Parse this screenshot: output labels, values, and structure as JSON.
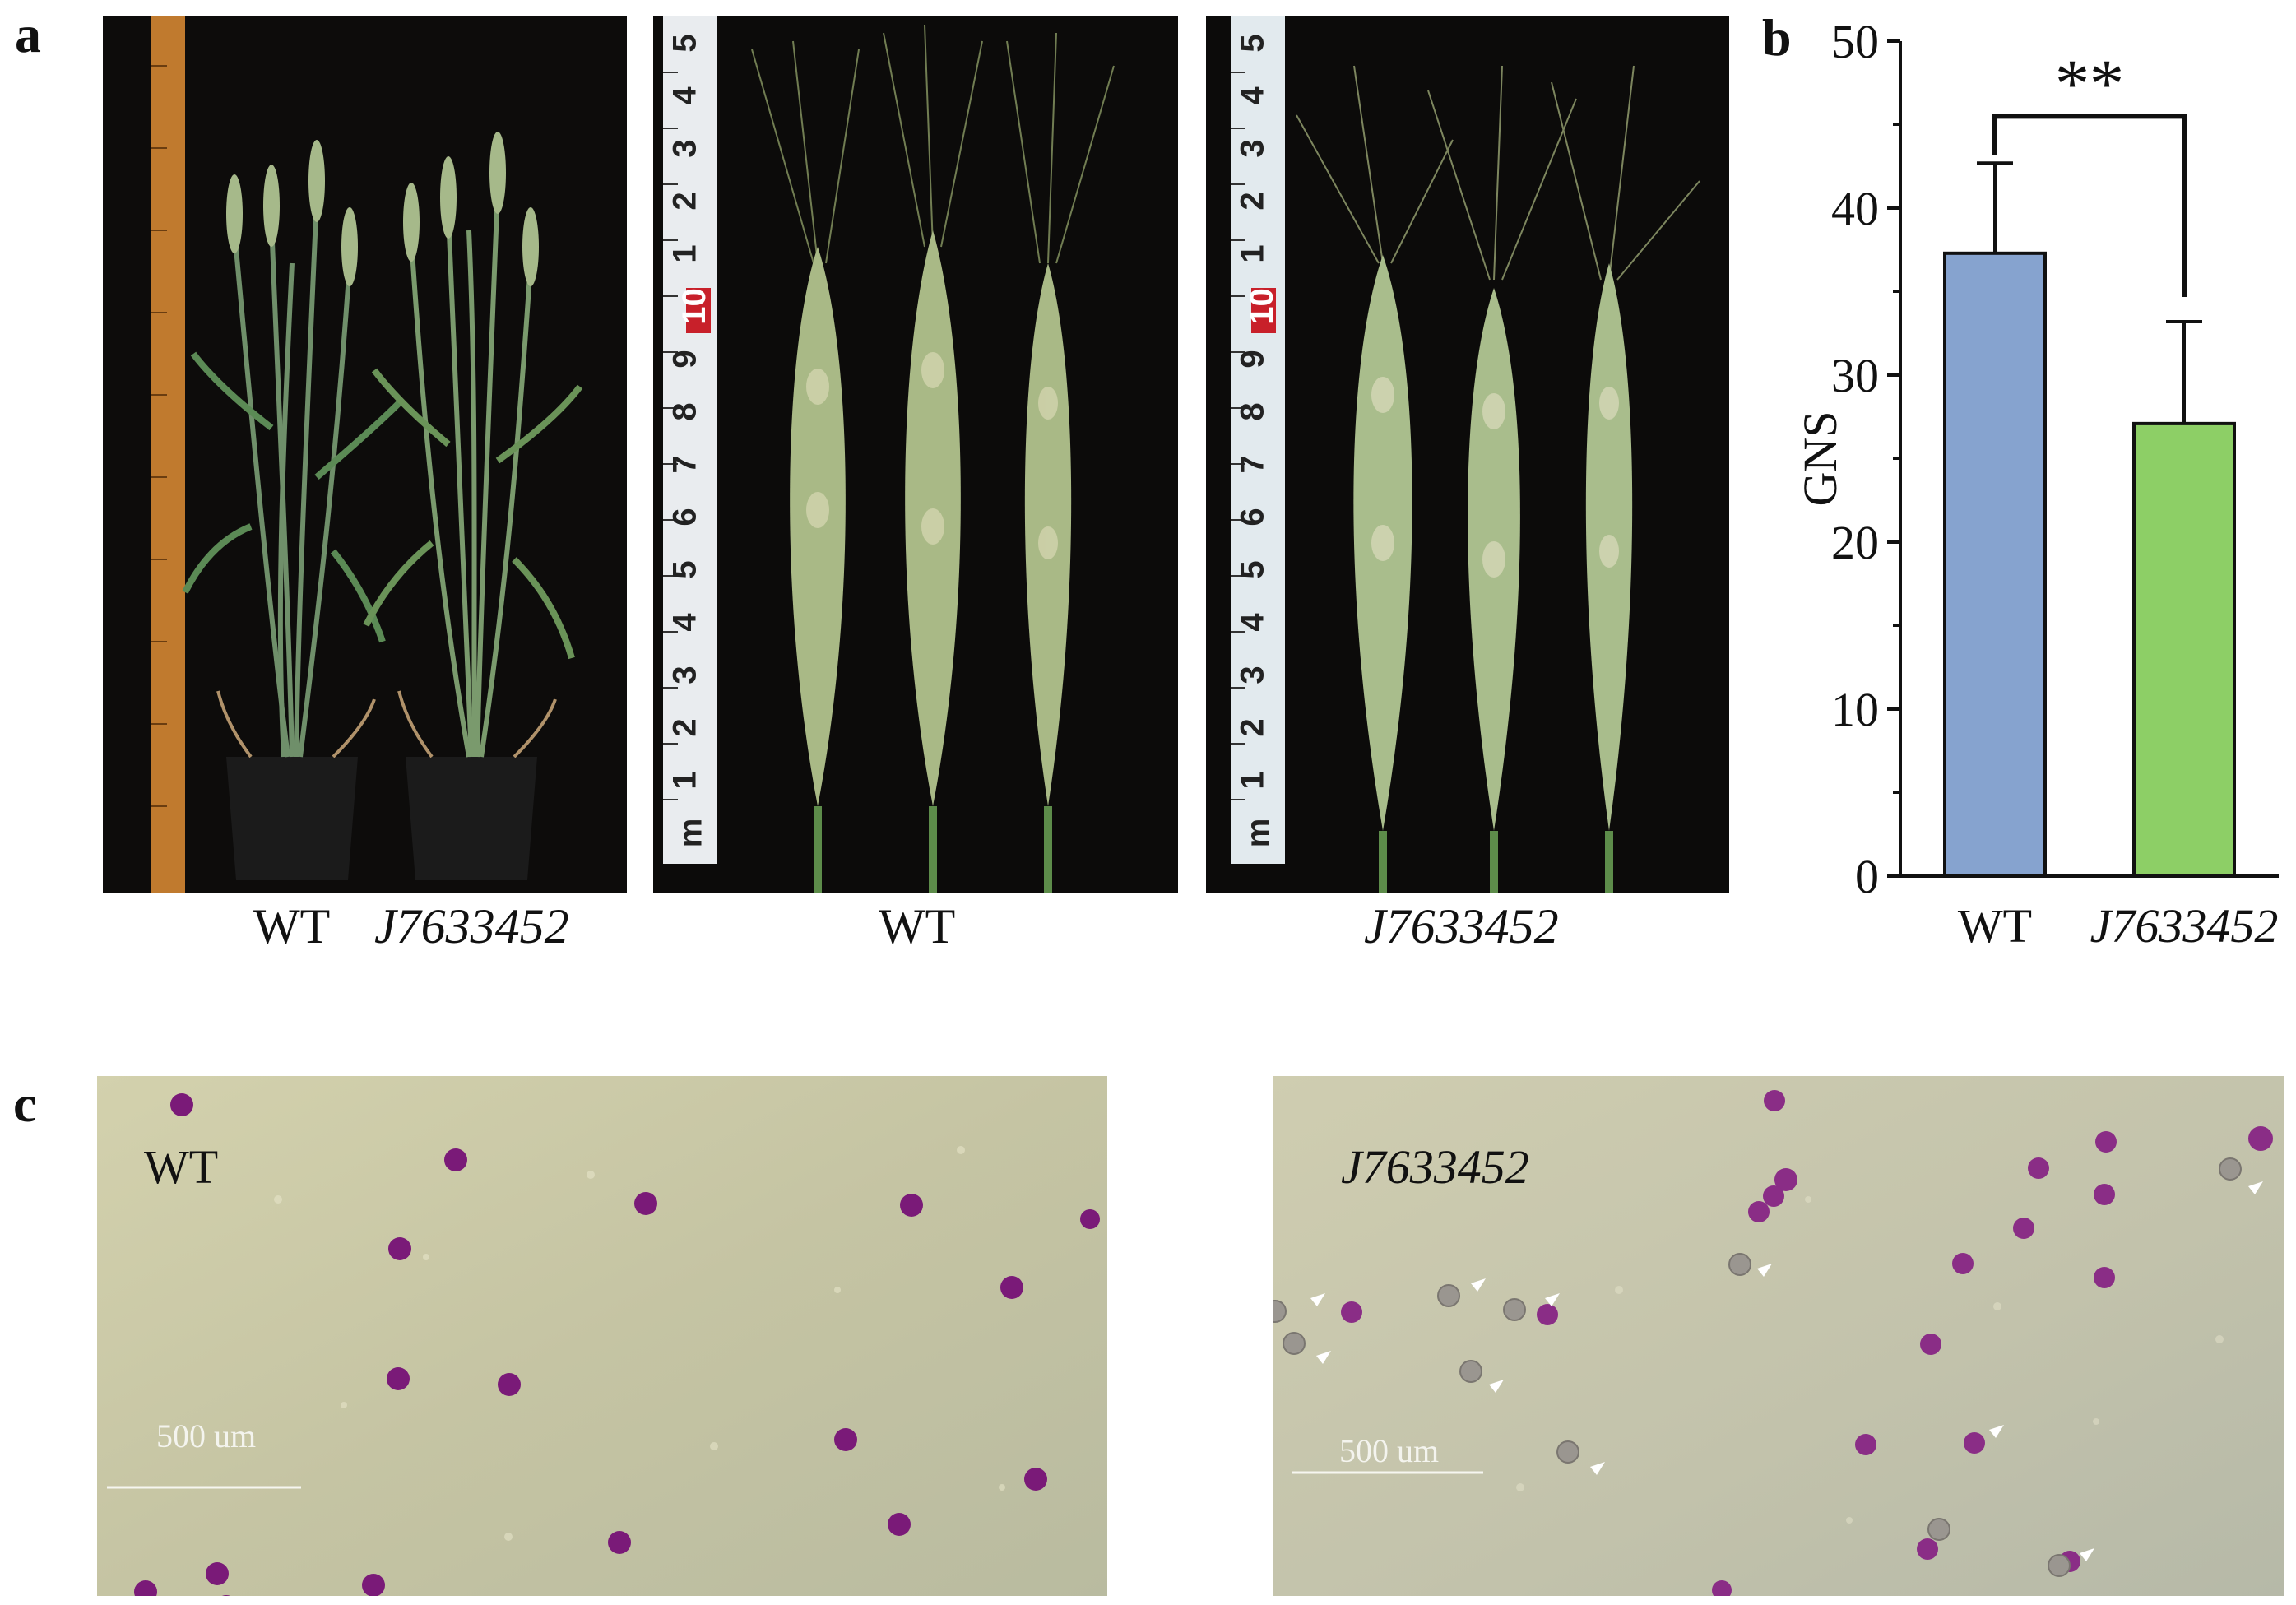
{
  "panel_a": {
    "letter": "a",
    "captions": {
      "plants_left": "WT",
      "plants_right": "J7633452",
      "spikes_wt": "WT",
      "spikes_mutant": "J7633452"
    },
    "ruler_numbers": [
      "5",
      "4",
      "3",
      "2",
      "1",
      "10",
      "9",
      "8",
      "7",
      "6",
      "5",
      "4",
      "3",
      "2",
      "1",
      "m"
    ]
  },
  "panel_b": {
    "letter": "b",
    "significance": "**"
  },
  "panel_c": {
    "letter": "c",
    "label_wt": "WT",
    "label_mutant": "J7633452",
    "scale_wt": "500 um",
    "scale_mutant": "500 um"
  },
  "colors": {
    "wt_bar": "#86a3cf",
    "mutant_bar": "#8dcf66",
    "photo_background": "#0c0b0a",
    "pollen_stain": "#7a1a78",
    "micro_background": "#c9c8a6"
  },
  "chart_data": {
    "type": "bar",
    "categories": [
      "WT",
      "J7633452"
    ],
    "values": [
      37.3,
      27.1
    ],
    "errors": [
      5.4,
      6.1
    ],
    "xlabel": "",
    "ylabel": "GNS",
    "ylim": [
      0,
      50
    ],
    "yticks": [
      0,
      10,
      20,
      30,
      40,
      50
    ],
    "annotations": [
      "**"
    ],
    "grid": false,
    "legend": "none"
  }
}
